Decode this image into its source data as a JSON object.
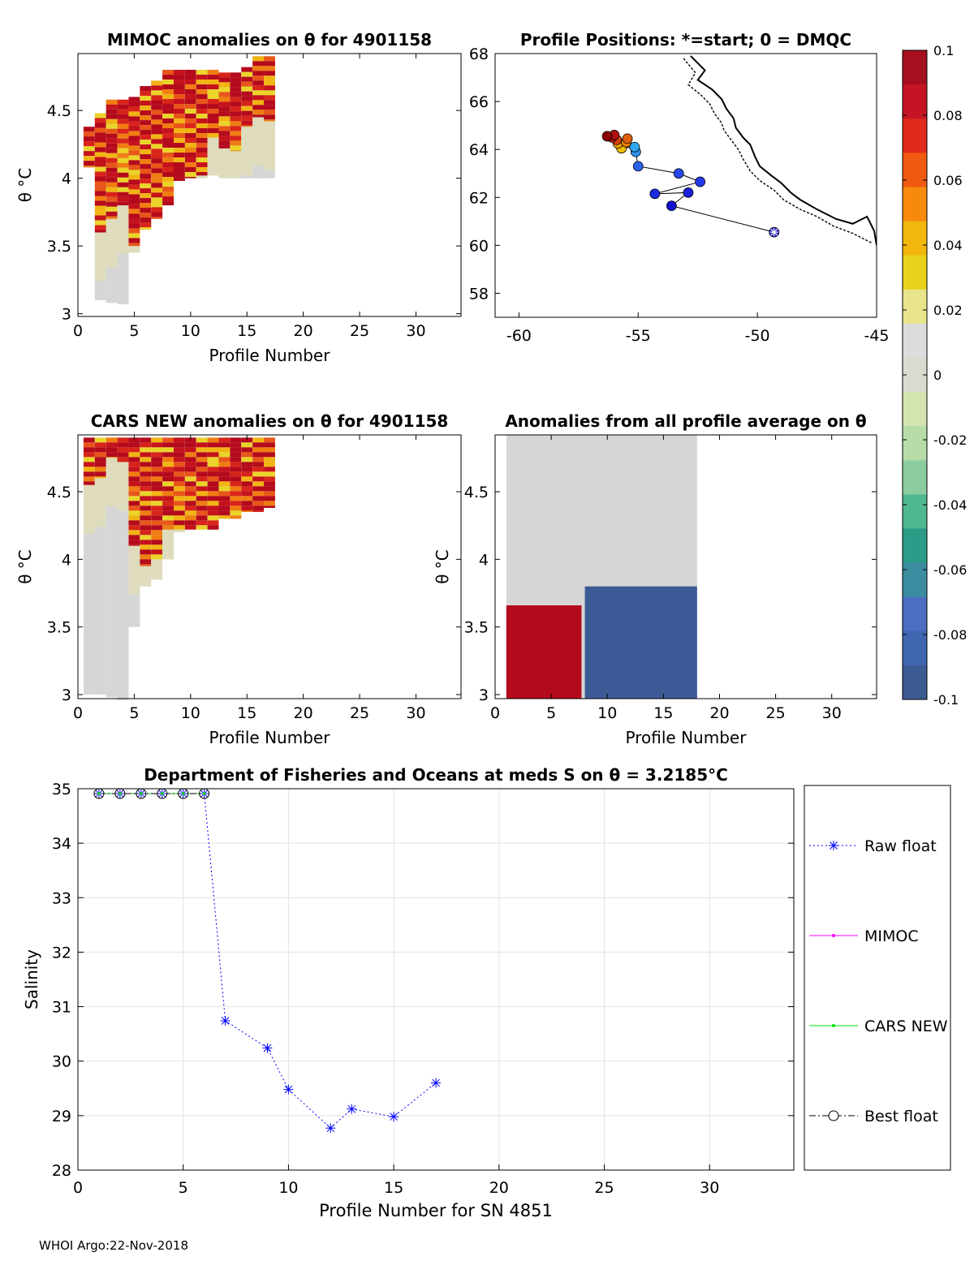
{
  "footer": "WHOI Argo:22-Nov-2018",
  "colors": {
    "raw": "#0000ff",
    "mimoc": "#ff00ff",
    "cars": "#00e000",
    "best": "#000000",
    "red": "#b50a1c",
    "blue": "#3c5a96",
    "grey": "#d6d6d6",
    "axis": "#000000",
    "grid": "#e3e3e3"
  },
  "chart_data": [
    {
      "id": "mimoc_anom",
      "type": "heatmap",
      "title": "MIMOC anomalies on θ  for 4901158",
      "xlabel": "Profile Number",
      "ylabel": "θ °C",
      "xlim": [
        0,
        34
      ],
      "ylim": [
        2.98,
        4.92
      ],
      "xticks": [
        "0",
        "5",
        "10",
        "15",
        "20",
        "25",
        "30"
      ],
      "yticks": [
        "3",
        "3.5",
        "4",
        "4.5"
      ],
      "columns": [
        {
          "profile": 1,
          "thetaMin": 4.08,
          "thetaMax": 4.38
        },
        {
          "profile": 2,
          "thetaMin": 3.1,
          "thetaMax": 4.48
        },
        {
          "profile": 3,
          "thetaMin": 3.08,
          "thetaMax": 4.58
        },
        {
          "profile": 4,
          "thetaMin": 3.07,
          "thetaMax": 4.58
        },
        {
          "profile": 5,
          "thetaMin": 3.45,
          "thetaMax": 4.6
        },
        {
          "profile": 6,
          "thetaMin": 3.62,
          "thetaMax": 4.68
        },
        {
          "profile": 7,
          "thetaMin": 3.7,
          "thetaMax": 4.72
        },
        {
          "profile": 8,
          "thetaMin": 3.8,
          "thetaMax": 4.8
        },
        {
          "profile": 9,
          "thetaMin": 3.98,
          "thetaMax": 4.8
        },
        {
          "profile": 10,
          "thetaMin": 4.0,
          "thetaMax": 4.8
        },
        {
          "profile": 11,
          "thetaMin": 4.0,
          "thetaMax": 4.8
        },
        {
          "profile": 12,
          "thetaMin": 4.02,
          "thetaMax": 4.8
        },
        {
          "profile": 13,
          "thetaMin": 4.0,
          "thetaMax": 4.78
        },
        {
          "profile": 14,
          "thetaMin": 4.0,
          "thetaMax": 4.78
        },
        {
          "profile": 15,
          "thetaMin": 4.0,
          "thetaMax": 4.82
        },
        {
          "profile": 16,
          "thetaMin": 4.0,
          "thetaMax": 4.9
        },
        {
          "profile": 17,
          "thetaMin": 4.0,
          "thetaMax": 4.9
        }
      ],
      "warmAbove": [
        4.08,
        3.6,
        3.7,
        3.8,
        3.5,
        3.62,
        3.7,
        3.8,
        3.98,
        4.0,
        4.02,
        4.3,
        4.22,
        4.2,
        4.38,
        4.45,
        4.42
      ]
    },
    {
      "id": "positions",
      "type": "scatter",
      "title": "Profile Positions: *=start; 0 = DMQC",
      "xlim": [
        -61,
        -45
      ],
      "ylim": [
        57,
        68
      ],
      "xticks": [
        "-60",
        "-55",
        "-50",
        "-45"
      ],
      "yticks": [
        "58",
        "60",
        "62",
        "64",
        "66",
        "68"
      ],
      "track": [
        {
          "lon": -49.3,
          "lat": 60.55,
          "color": "#2020c0"
        },
        {
          "lon": -53.6,
          "lat": 61.65,
          "color": "#1010d0"
        },
        {
          "lon": -52.9,
          "lat": 62.2,
          "color": "#1a20d8"
        },
        {
          "lon": -54.3,
          "lat": 62.15,
          "color": "#1a28e0"
        },
        {
          "lon": -52.4,
          "lat": 62.65,
          "color": "#2438e8"
        },
        {
          "lon": -53.3,
          "lat": 63.0,
          "color": "#2848ea"
        },
        {
          "lon": -55.0,
          "lat": 63.3,
          "color": "#2c60ec"
        },
        {
          "lon": -55.1,
          "lat": 63.9,
          "color": "#3090ec"
        },
        {
          "lon": -55.15,
          "lat": 64.1,
          "color": "#30a8f0"
        },
        {
          "lon": -55.7,
          "lat": 64.05,
          "color": "#f0c000"
        },
        {
          "lon": -55.85,
          "lat": 64.25,
          "color": "#f0a000"
        },
        {
          "lon": -55.5,
          "lat": 64.3,
          "color": "#f08000"
        },
        {
          "lon": -55.45,
          "lat": 64.45,
          "color": "#e06010"
        },
        {
          "lon": -55.9,
          "lat": 64.4,
          "color": "#d84010"
        },
        {
          "lon": -56.1,
          "lat": 64.5,
          "color": "#c02010"
        },
        {
          "lon": -56.0,
          "lat": 64.6,
          "color": "#b01010"
        },
        {
          "lon": -56.3,
          "lat": 64.55,
          "color": "#8b0000"
        }
      ],
      "coast": [
        [
          -52.8,
          67.9
        ],
        [
          -52.2,
          67.3
        ],
        [
          -52.5,
          66.9
        ],
        [
          -51.9,
          66.5
        ],
        [
          -51.5,
          66.1
        ],
        [
          -51.3,
          65.7
        ],
        [
          -51.0,
          65.3
        ],
        [
          -50.9,
          64.9
        ],
        [
          -50.6,
          64.5
        ],
        [
          -50.3,
          64.2
        ],
        [
          -50.1,
          63.7
        ],
        [
          -49.9,
          63.3
        ],
        [
          -49.4,
          62.9
        ],
        [
          -49.0,
          62.6
        ],
        [
          -48.6,
          62.2
        ],
        [
          -48.2,
          61.9
        ],
        [
          -47.5,
          61.5
        ],
        [
          -46.7,
          61.1
        ],
        [
          -46.0,
          60.9
        ],
        [
          -45.4,
          61.2
        ],
        [
          -45.1,
          60.6
        ],
        [
          -45.0,
          60.0
        ]
      ],
      "coastInner": [
        [
          -53.1,
          67.8
        ],
        [
          -52.6,
          67.2
        ],
        [
          -52.9,
          66.7
        ],
        [
          -52.4,
          66.3
        ],
        [
          -52.0,
          65.9
        ],
        [
          -51.8,
          65.5
        ],
        [
          -51.5,
          65.1
        ],
        [
          -51.4,
          64.8
        ],
        [
          -51.1,
          64.4
        ],
        [
          -50.8,
          64.0
        ],
        [
          -50.6,
          63.6
        ],
        [
          -50.3,
          63.1
        ],
        [
          -49.9,
          62.7
        ],
        [
          -49.3,
          62.3
        ],
        [
          -48.9,
          61.9
        ],
        [
          -48.2,
          61.5
        ],
        [
          -47.5,
          61.2
        ],
        [
          -46.8,
          60.8
        ],
        [
          -46.0,
          60.5
        ],
        [
          -45.2,
          60.1
        ]
      ]
    },
    {
      "id": "cars_anom",
      "type": "heatmap",
      "title": "CARS NEW anomalies on θ for 4901158",
      "xlabel": "Profile Number",
      "ylabel": "θ °C",
      "xlim": [
        0,
        34
      ],
      "ylim": [
        2.97,
        4.92
      ],
      "xticks": [
        "0",
        "5",
        "10",
        "15",
        "20",
        "25",
        "30"
      ],
      "yticks": [
        "3",
        "3.5",
        "4",
        "4.5"
      ],
      "columns": [
        {
          "profile": 1,
          "thetaMin": 3.0,
          "thetaMax": 4.9
        },
        {
          "profile": 2,
          "thetaMin": 3.0,
          "thetaMax": 4.9
        },
        {
          "profile": 3,
          "thetaMin": 2.98,
          "thetaMax": 4.9
        },
        {
          "profile": 4,
          "thetaMin": 2.96,
          "thetaMax": 4.9
        },
        {
          "profile": 5,
          "thetaMin": 3.5,
          "thetaMax": 4.9
        },
        {
          "profile": 6,
          "thetaMin": 3.8,
          "thetaMax": 4.9
        },
        {
          "profile": 7,
          "thetaMin": 3.85,
          "thetaMax": 4.9
        },
        {
          "profile": 8,
          "thetaMin": 4.0,
          "thetaMax": 4.9
        },
        {
          "profile": 9,
          "thetaMin": 4.2,
          "thetaMax": 4.9
        },
        {
          "profile": 10,
          "thetaMin": 4.22,
          "thetaMax": 4.9
        },
        {
          "profile": 11,
          "thetaMin": 4.22,
          "thetaMax": 4.9
        },
        {
          "profile": 12,
          "thetaMin": 4.22,
          "thetaMax": 4.9
        },
        {
          "profile": 13,
          "thetaMin": 4.3,
          "thetaMax": 4.9
        },
        {
          "profile": 14,
          "thetaMin": 4.3,
          "thetaMax": 4.9
        },
        {
          "profile": 15,
          "thetaMin": 4.35,
          "thetaMax": 4.9
        },
        {
          "profile": 16,
          "thetaMin": 4.35,
          "thetaMax": 4.9
        },
        {
          "profile": 17,
          "thetaMin": 4.38,
          "thetaMax": 4.9
        }
      ],
      "warmAbove": [
        4.55,
        4.6,
        4.75,
        4.72,
        4.1,
        3.95,
        4.0,
        4.22,
        4.22,
        4.22,
        4.22,
        4.22,
        4.3,
        4.3,
        4.35,
        4.35,
        4.38
      ]
    },
    {
      "id": "avg_anom",
      "type": "heatmap",
      "title": "Anomalies from all profile average on θ",
      "xlabel": "Profile Number",
      "ylabel": "θ °C",
      "xlim": [
        0,
        34
      ],
      "ylim": [
        2.97,
        4.92
      ],
      "xticks": [
        "0",
        "5",
        "10",
        "15",
        "20",
        "25",
        "30"
      ],
      "yticks": [
        "3",
        "3.5",
        "4",
        "4.5"
      ],
      "redBlock": {
        "x0": 1,
        "x1": 7.7,
        "thetaMin": 2.97,
        "thetaMax": 3.66
      },
      "blueBlock": {
        "x0": 8,
        "x1": 18,
        "thetaMin": 2.97,
        "thetaMax": 3.8
      },
      "greyBlock": {
        "x0": 1,
        "x1": 18,
        "thetaMin": 2.97,
        "thetaMax": 4.92
      }
    },
    {
      "id": "colorbar",
      "type": "heatmap",
      "title": "",
      "ticks": [
        "0.1",
        "0.08",
        "0.06",
        "0.04",
        "0.02",
        "0",
        "-0.02",
        "-0.04",
        "-0.06",
        "-0.08",
        "-0.1"
      ],
      "tickValues": [
        0.1,
        0.08,
        0.06,
        0.04,
        0.02,
        0,
        -0.02,
        -0.04,
        -0.06,
        -0.08,
        -0.1
      ],
      "stops": [
        "#a50f20",
        "#c51424",
        "#e02a1c",
        "#f05a10",
        "#f7890c",
        "#f1b70c",
        "#ead21c",
        "#e8e58c",
        "#dcdcdc",
        "#d8dcd0",
        "#d4e4b0",
        "#b8dca8",
        "#8ccca0",
        "#50b890",
        "#2c9c88",
        "#3c8ca0",
        "#4d6dc0",
        "#4066b0",
        "#3d5b93"
      ]
    },
    {
      "id": "salinity",
      "type": "line",
      "title": "Department of Fisheries and Oceans at meds S on θ = 3.2185°C",
      "xlabel": "Profile Number for SN 4851",
      "ylabel": "Salinity",
      "xlim": [
        0,
        34
      ],
      "ylim": [
        28,
        35
      ],
      "xticks": [
        "0",
        "5",
        "10",
        "15",
        "20",
        "25",
        "30"
      ],
      "yticks": [
        "28",
        "29",
        "30",
        "31",
        "32",
        "33",
        "34",
        "35"
      ],
      "series": [
        {
          "name": "Raw float",
          "x": [
            1,
            2,
            3,
            4,
            5,
            6,
            7,
            9,
            10,
            12,
            13,
            15,
            17
          ],
          "y": [
            34.91,
            34.91,
            34.91,
            34.91,
            34.91,
            34.91,
            30.74,
            30.24,
            29.48,
            28.77,
            29.12,
            28.98,
            29.6
          ]
        },
        {
          "name": "MIMOC",
          "x": [
            1,
            2,
            3,
            4,
            5,
            6
          ],
          "y": [
            34.91,
            34.91,
            34.91,
            34.91,
            34.91,
            34.91
          ]
        },
        {
          "name": "CARS NEW",
          "x": [
            1,
            2,
            3,
            4,
            5,
            6
          ],
          "y": [
            34.91,
            34.91,
            34.91,
            34.91,
            34.91,
            34.91
          ]
        },
        {
          "name": "Best float",
          "x": [
            1,
            2,
            3,
            4,
            5,
            6
          ],
          "y": [
            34.91,
            34.91,
            34.91,
            34.91,
            34.91,
            34.91
          ]
        }
      ]
    }
  ]
}
